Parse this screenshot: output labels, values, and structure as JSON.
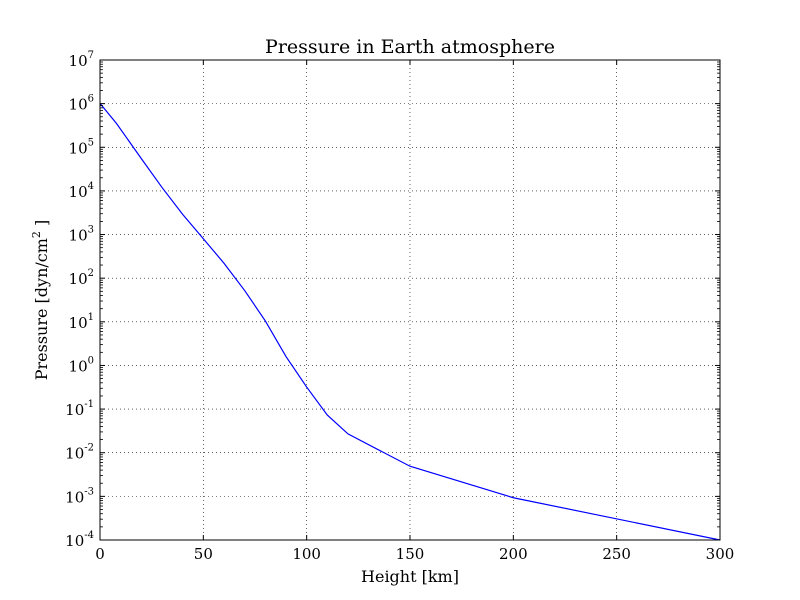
{
  "chart_data": {
    "type": "line",
    "title": "Pressure in Earth atmosphere",
    "xlabel": "Height [km]",
    "ylabel_base": "Pressure [dyn/cm",
    "ylabel_sup": "2",
    "ylabel_tail": " ]",
    "xlim": [
      0,
      300
    ],
    "ylim": [
      0.0001,
      10000000
    ],
    "yscale": "log",
    "grid": true,
    "line_color": "#0000ff",
    "x_ticks": [
      {
        "value": 0,
        "label": "0"
      },
      {
        "value": 50,
        "label": "50"
      },
      {
        "value": 100,
        "label": "100"
      },
      {
        "value": 150,
        "label": "150"
      },
      {
        "value": 200,
        "label": "200"
      },
      {
        "value": 250,
        "label": "250"
      },
      {
        "value": 300,
        "label": "300"
      }
    ],
    "y_ticks": [
      {
        "value": 0.0001,
        "base": "10",
        "exp": "-4"
      },
      {
        "value": 0.001,
        "base": "10",
        "exp": "-3"
      },
      {
        "value": 0.01,
        "base": "10",
        "exp": "-2"
      },
      {
        "value": 0.1,
        "base": "10",
        "exp": "-1"
      },
      {
        "value": 1,
        "base": "10",
        "exp": "0"
      },
      {
        "value": 10,
        "base": "10",
        "exp": "1"
      },
      {
        "value": 100,
        "base": "10",
        "exp": "2"
      },
      {
        "value": 1000,
        "base": "10",
        "exp": "3"
      },
      {
        "value": 10000,
        "base": "10",
        "exp": "4"
      },
      {
        "value": 100000,
        "base": "10",
        "exp": "5"
      },
      {
        "value": 1000000,
        "base": "10",
        "exp": "6"
      },
      {
        "value": 10000000,
        "base": "10",
        "exp": "7"
      }
    ],
    "x": [
      0,
      8,
      20,
      30,
      40,
      50,
      60,
      70,
      80,
      90,
      100,
      110,
      120,
      150,
      200,
      300
    ],
    "y": [
      1013250,
      350000,
      55000,
      12000,
      2900,
      800,
      220,
      52,
      10.5,
      1.6,
      0.32,
      0.073,
      0.027,
      0.0049,
      0.00093,
      0.0001
    ]
  }
}
